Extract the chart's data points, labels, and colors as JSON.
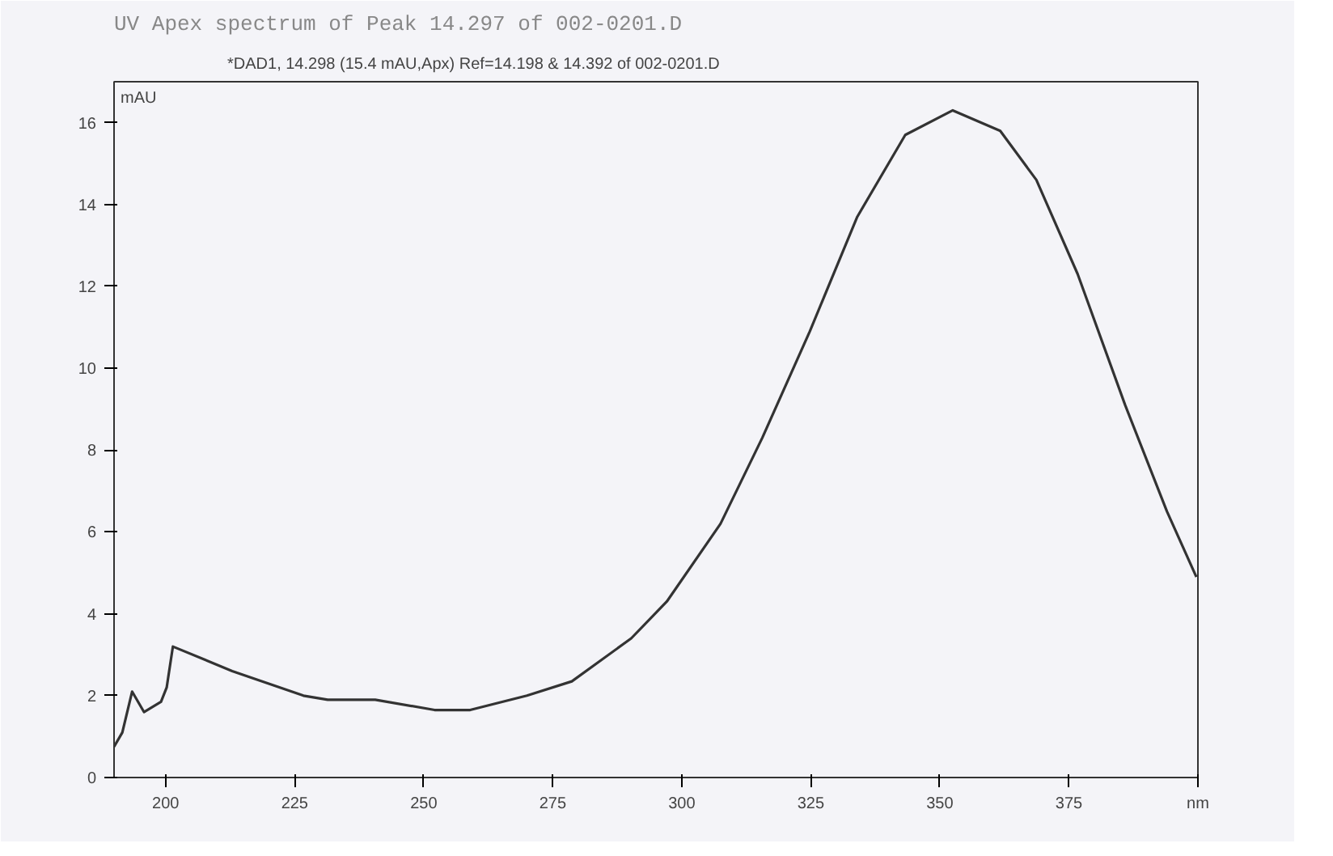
{
  "chart_data": {
    "type": "line",
    "title": "UV Apex spectrum of Peak 14.297 of 002-0201.D",
    "subtitle": "*DAD1, 14.298 (15.4 mAU,Apx) Ref=14.198 & 14.392 of 002-0201.D",
    "ylabel": "mAU",
    "x": [
      190,
      191.6,
      193.5,
      195.8,
      199.1,
      200.2,
      201.4,
      212.9,
      226.7,
      231.4,
      240.6,
      252.1,
      259,
      270,
      278.7,
      290.2,
      297.1,
      307.5,
      315.6,
      324.8,
      334,
      343.3,
      352.5,
      361.7,
      368.7,
      376.7,
      385.9,
      394,
      399.7
    ],
    "series": [
      {
        "color": "#333333",
        "values": [
          0.75,
          1.1,
          2.1,
          1.6,
          1.85,
          2.2,
          3.2,
          2.6,
          2.0,
          1.9,
          1.9,
          1.65,
          1.65,
          2.0,
          2.35,
          3.4,
          4.3,
          6.2,
          8.3,
          10.9,
          13.7,
          15.7,
          16.3,
          15.8,
          14.6,
          12.3,
          9.1,
          6.5,
          4.9
        ]
      }
    ],
    "xlim": [
      190,
      400
    ],
    "ylim": [
      0,
      17
    ],
    "xticks": [
      200,
      225,
      250,
      275,
      300,
      325,
      350,
      375,
      {
        "value": 400,
        "label": "nm"
      }
    ],
    "yticks": [
      0,
      2,
      4,
      6,
      8,
      10,
      12,
      14,
      16
    ],
    "grid": false,
    "marker": "none",
    "line_style": "solid"
  }
}
